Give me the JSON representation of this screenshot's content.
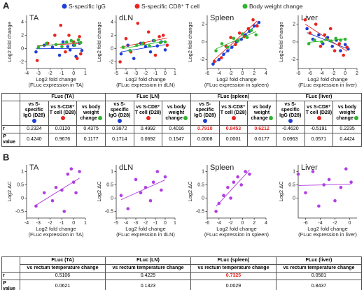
{
  "panels": [
    "A",
    "B"
  ],
  "legend": [
    {
      "name": "S-specific IgG",
      "color": "#1f3fd8"
    },
    {
      "name": "S-specific CD8⁺ T cell",
      "color": "#e8251f"
    },
    {
      "name": "Body weight change",
      "color": "#2db52d"
    }
  ],
  "chart_data": [
    {
      "type": "scatter",
      "title": "TA",
      "ylabel": "Log2 fold change",
      "xlabel": [
        "Log2 fold change",
        "(FLuc expression in TA)"
      ],
      "xlim": [
        -4,
        1
      ],
      "xticks": [
        -4,
        -3,
        -2,
        -1,
        0,
        1
      ],
      "ylim": [
        -3,
        5
      ],
      "yticks": [
        -2,
        0,
        2,
        4
      ],
      "series": [
        {
          "color": "#1f3fd8",
          "x": [
            -3.2,
            -2.5,
            -1.8,
            -1.2,
            -0.9,
            -0.5,
            -0.3,
            0,
            0.2,
            0.5,
            0.7
          ],
          "values": [
            -0.5,
            0.5,
            0.2,
            -1,
            1,
            0.3,
            -0.2,
            0.5,
            -1.2,
            0.8,
            -0.3
          ]
        },
        {
          "color": "#e8251f",
          "x": [
            -3.1,
            -2.2,
            -1.6,
            -1.1,
            -0.7,
            -0.4,
            0,
            0.3,
            0.5,
            0.6
          ],
          "values": [
            -1.8,
            0.8,
            2,
            3.5,
            -0.5,
            2,
            1,
            -1.5,
            1.8,
            -0.8
          ]
        },
        {
          "color": "#2db52d",
          "x": [
            -3,
            -2.3,
            -1.5,
            -1,
            -0.6,
            -0.2,
            0.1,
            0.4,
            0.6
          ],
          "values": [
            0.2,
            0.8,
            0.6,
            0.3,
            1,
            1.2,
            0.5,
            1.3,
            0.9
          ]
        }
      ]
    },
    {
      "type": "scatter",
      "title": "dLN",
      "ylabel": "Log2 fold change",
      "xlabel": [
        "Log2 fold change",
        "(FLuc expression in dLN)"
      ],
      "xlim": [
        -5,
        1
      ],
      "xticks": [
        -5,
        -4,
        -3,
        -2,
        -1,
        0,
        1
      ],
      "ylim": [
        -3,
        5
      ],
      "yticks": [
        -2,
        0,
        2,
        4
      ],
      "series": [
        {
          "color": "#1f3fd8",
          "x": [
            -4.5,
            -3.8,
            -3.2,
            -2.5,
            -2,
            -1.5,
            -1.2,
            -0.8,
            -0.4,
            0
          ],
          "values": [
            -0.8,
            0.5,
            -1.5,
            0.8,
            0.3,
            -0.5,
            1.2,
            0.4,
            1,
            -0.2
          ]
        },
        {
          "color": "#e8251f",
          "x": [
            -4.6,
            -4,
            -3.5,
            -2.8,
            -2.2,
            -1.7,
            -1,
            -0.6,
            -0.2,
            0.2
          ],
          "values": [
            -2,
            1.5,
            -0.5,
            3.8,
            0.8,
            2.5,
            -1,
            1.8,
            2,
            0.5
          ]
        },
        {
          "color": "#2db52d",
          "x": [
            -4.3,
            -3.6,
            -2.9,
            -2.3,
            -1.6,
            -1.1,
            -0.5,
            0
          ],
          "values": [
            0.2,
            -0.3,
            0.5,
            0.8,
            0.4,
            1.2,
            0.9,
            1
          ]
        }
      ]
    },
    {
      "type": "scatter",
      "title": "Spleen",
      "ylabel": "Log2 fold change",
      "xlabel": [
        "Log2 fold change",
        "(FLuc expression in spleen)"
      ],
      "xlim": [
        -6,
        4
      ],
      "xticks": [
        -6,
        -4,
        -2,
        0,
        2,
        4
      ],
      "ylim": [
        -3,
        3
      ],
      "yticks": [
        -2,
        0,
        2
      ],
      "series": [
        {
          "color": "#1f3fd8",
          "x": [
            -5,
            -4,
            -3.2,
            -2.5,
            -1.8,
            -1,
            -0.2,
            0.5,
            1.2,
            2,
            2.8
          ],
          "values": [
            -2.5,
            -2,
            -1.4,
            -1,
            -0.6,
            0,
            0.3,
            0.8,
            1.2,
            1.8,
            2.2
          ]
        },
        {
          "color": "#e8251f",
          "x": [
            -4.8,
            -3.6,
            -2.8,
            -2,
            -1.2,
            -0.5,
            0.3,
            1,
            1.8,
            2.5
          ],
          "values": [
            -2.2,
            -1.8,
            -0.5,
            0.5,
            -0.3,
            1,
            0.6,
            1.5,
            2.5,
            1.8
          ]
        },
        {
          "color": "#2db52d",
          "x": [
            -4.5,
            -3.5,
            -2.5,
            -1.5,
            -0.8,
            0,
            0.8,
            1.5,
            2.3
          ],
          "values": [
            -1,
            -0.2,
            -0.6,
            0.4,
            0.1,
            0.9,
            0.5,
            1.3,
            0.8
          ]
        }
      ]
    },
    {
      "type": "scatter",
      "title": "Liver",
      "ylabel": "Log2 fold change",
      "xlabel": [
        "Log2 fold change",
        "(FLuc expression in liver)"
      ],
      "xlim": [
        -8,
        2
      ],
      "xticks": [
        -8,
        -6,
        -4,
        -2,
        0,
        2
      ],
      "ylim": [
        -3,
        3
      ],
      "yticks": [
        -2,
        0,
        2
      ],
      "series": [
        {
          "color": "#1f3fd8",
          "x": [
            -6.5,
            -5.5,
            -4.5,
            -3.8,
            -3,
            -2.2,
            -1.5,
            -0.8,
            0,
            0.5
          ],
          "values": [
            1.5,
            0.3,
            0.8,
            -0.2,
            0.5,
            -0.5,
            0.2,
            -1,
            -0.3,
            -0.8
          ]
        },
        {
          "color": "#e8251f",
          "x": [
            -6.8,
            -6,
            -5,
            -4.2,
            -3.5,
            -2.5,
            -1.8,
            -1,
            -0.3,
            0.3
          ],
          "values": [
            2.5,
            1,
            2,
            -0.5,
            0.8,
            1.5,
            -1,
            -0.2,
            -1.5,
            -0.6
          ]
        },
        {
          "color": "#2db52d",
          "x": [
            -6.2,
            -5.2,
            -4,
            -3.2,
            -2.4,
            -1.6,
            -0.8,
            0
          ],
          "values": [
            -0.2,
            0.2,
            0,
            0.3,
            0.1,
            0.4,
            0.2,
            0.3
          ]
        }
      ]
    },
    {
      "type": "scatter",
      "title": "TA",
      "ylabel": "Log2 ΔC",
      "xlabel": [
        "Log2 fold change",
        "(FLuc expression in TA)"
      ],
      "xlim": [
        -4,
        1
      ],
      "xticks": [
        -4,
        -3,
        -2,
        -1,
        0,
        1
      ],
      "ylim": [
        -0.75,
        1.25
      ],
      "yticks": [
        -0.5,
        0,
        0.5,
        1
      ],
      "series": [
        {
          "color": "#b03ee0",
          "x": [
            -3.2,
            -2.5,
            -1.8,
            -1.5,
            -1,
            -0.8,
            -0.5,
            -0.2,
            0,
            0.2,
            0.5
          ],
          "values": [
            -0.3,
            0.2,
            -0.1,
            0.4,
            0.3,
            -0.5,
            0.9,
            1.1,
            0.6,
            0.2,
            1
          ]
        }
      ]
    },
    {
      "type": "scatter",
      "title": "dLN",
      "ylabel": "Log2 ΔC",
      "xlabel": [
        "Log2 fold change",
        "(FLuc expression in dLN)"
      ],
      "xlim": [
        -5,
        1
      ],
      "xticks": [
        -5,
        -4,
        -3,
        -2,
        -1,
        0,
        1
      ],
      "ylim": [
        -0.75,
        1.25
      ],
      "yticks": [
        -0.5,
        0,
        0.5,
        1
      ],
      "series": [
        {
          "color": "#b03ee0",
          "x": [
            -4.5,
            -3.8,
            -3,
            -2.5,
            -2,
            -1.5,
            -1.2,
            -0.8,
            -0.4,
            0
          ],
          "values": [
            0.1,
            -0.4,
            0.7,
            0.2,
            0.4,
            -0.1,
            0.6,
            1,
            0.3,
            0.8
          ]
        }
      ]
    },
    {
      "type": "scatter",
      "title": "Spleen",
      "ylabel": "Log2 ΔC",
      "xlabel": [
        "Log2 fold change",
        "(FLuc expression in spleen)"
      ],
      "xlim": [
        -6,
        4
      ],
      "xticks": [
        -6,
        -4,
        -2,
        0,
        2,
        4
      ],
      "ylim": [
        -0.75,
        1.25
      ],
      "yticks": [
        -0.5,
        0,
        0.5,
        1
      ],
      "series": [
        {
          "color": "#b03ee0",
          "x": [
            -4.5,
            -4,
            -3.2,
            -2.5,
            -2,
            -1.5,
            -0.8,
            -0.2,
            0.5,
            1.2
          ],
          "values": [
            -0.5,
            -0.2,
            0.1,
            0.4,
            0,
            0.6,
            0.8,
            0.5,
            1,
            0.9
          ]
        }
      ]
    },
    {
      "type": "scatter",
      "title": "Liver",
      "ylabel": "Log2 ΔC",
      "xlabel": [
        "Log2 fold change",
        "(FLuc expression in liver)"
      ],
      "xlim": [
        -7,
        1
      ],
      "xticks": [
        -6,
        -4,
        -2,
        0
      ],
      "ylim": [
        -0.75,
        1.25
      ],
      "yticks": [
        0,
        0.5,
        1
      ],
      "series": [
        {
          "color": "#b03ee0",
          "x": [
            -7,
            -6,
            -5,
            -4.2,
            -3.5,
            -2.8,
            -2,
            -1.2,
            -0.5,
            0.2
          ],
          "values": [
            0.9,
            0.2,
            1,
            -0.3,
            0.5,
            0.7,
            -0.1,
            0.4,
            1.1,
            0.6
          ]
        }
      ]
    }
  ],
  "table_a": {
    "highlight_color": "#e8251f",
    "highlighted_r": [
      6,
      7,
      8
    ],
    "columns": [
      {
        "header": "FLuc (TA)",
        "subheaders": [
          "vs S-specific IgG (D28)",
          "vs S-CD8⁺ T cell (D28)",
          "vs body weight change"
        ]
      },
      {
        "header": "FLuc (LN)",
        "subheaders": [
          "vs S-specific IgG (D28)",
          "vs S-CD8⁺ T cell (D28)",
          "vs body weight change"
        ]
      },
      {
        "header": "FLuc (spleen)",
        "subheaders": [
          "vs S-specific IgG (D28)",
          "vs S-CD8⁺ T cell (D28)",
          "vs body weight change"
        ]
      },
      {
        "header": "FLuc (liver)",
        "subheaders": [
          "vs S-specific IgG (D28)",
          "vs S-CD8⁺ T cell (D28)",
          "vs body weight change"
        ]
      }
    ],
    "rows": [
      {
        "label": "r",
        "values": [
          "0.2324",
          "0.0120",
          "0.4375",
          "0.3872",
          "0.4992",
          "0.4016",
          "0.7910",
          "0.8453",
          "0.6212",
          "-0.4620",
          "-0.5191",
          "0.2235"
        ]
      },
      {
        "label": "P value",
        "values": [
          "0.4240",
          "0.9676",
          "0.1177",
          "0.1714",
          "0.0692",
          "0.1547",
          "0.0008",
          "0.0001",
          "0.0177",
          "0.0963",
          "0.0571",
          "0.4424"
        ]
      }
    ]
  },
  "table_b": {
    "highlight_color": "#e8251f",
    "highlighted_r": [
      2
    ],
    "columns": [
      {
        "header": "FLuc (TA)",
        "subheader": "vs rectum temperature change"
      },
      {
        "header": "FLuc (LN)",
        "subheader": "vs rectum temperature change"
      },
      {
        "header": "FLuc (spleen)",
        "subheader": "vs rectum temperature change"
      },
      {
        "header": "FLuc (liver)",
        "subheader": "vs rectum temperature change"
      }
    ],
    "rows": [
      {
        "label": "r",
        "values": [
          "0.5106",
          "0.4225",
          "0.7325",
          "0.0581"
        ]
      },
      {
        "label": "P value",
        "values": [
          "0.0621",
          "0.1323",
          "0.0029",
          "0.8437"
        ]
      }
    ]
  }
}
